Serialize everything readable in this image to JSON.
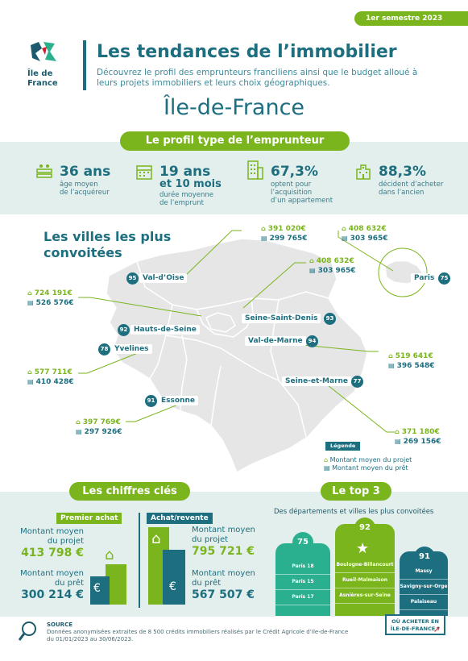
{
  "header": {
    "semester": "1er semestre 2023",
    "logo_text_1": "Île de",
    "logo_text_2": "France",
    "title": "Les tendances de l’immobilier",
    "subtitle": "Découvrez le profil des emprunteurs franciliens ainsi que le budget alloué à leurs projets immobiliers et leurs choix géographiques.",
    "region": "Île-de-France"
  },
  "profile": {
    "heading": "Le profil type de l’emprunteur",
    "stats": [
      {
        "icon": "people-icon",
        "big": "36 ans",
        "mid": "",
        "small1": "âge moyen",
        "small2": "de l’acquéreur",
        "small3": ""
      },
      {
        "icon": "calendar-icon",
        "big": "19 ans",
        "mid": "et 10 mois",
        "small1": "durée moyenne",
        "small2": "de l’emprunt",
        "small3": ""
      },
      {
        "icon": "apartment-icon",
        "big": "67,3%",
        "mid": "",
        "small1": "optent pour",
        "small2": "l’acquisition",
        "small3": "d’un appartement"
      },
      {
        "icon": "old-building-icon",
        "big": "88,3%",
        "mid": "",
        "small1": "décident d’acheter",
        "small2": "dans l’ancien",
        "small3": ""
      }
    ]
  },
  "map": {
    "title_line1": "Les villes les plus",
    "title_line2": "convoitées",
    "departments": [
      {
        "num": "95",
        "name": "Val-d’Oise"
      },
      {
        "num": "75",
        "name": "Paris"
      },
      {
        "num": "93",
        "name": "Seine-Saint-Denis"
      },
      {
        "num": "92",
        "name": "Hauts-de-Seine"
      },
      {
        "num": "94",
        "name": "Val-de-Marne"
      },
      {
        "num": "78",
        "name": "Yvelines"
      },
      {
        "num": "77",
        "name": "Seine-et-Marne"
      },
      {
        "num": "91",
        "name": "Essonne"
      }
    ],
    "prices": {
      "val_doise": {
        "project": "391 020€",
        "loan": "299 765€"
      },
      "paris": {
        "project": "408 632€",
        "loan": "303 965€"
      },
      "seine_saint_denis": {
        "project": "408 632€",
        "loan": "303 965€"
      },
      "hauts_de_seine": {
        "project": "724 191€",
        "loan": "526 576€"
      },
      "val_de_marne": {
        "project": "519 641€",
        "loan": "396 548€"
      },
      "yvelines": {
        "project": "577 711€",
        "loan": "410 428€"
      },
      "essonne": {
        "project": "397 769€",
        "loan": "297 926€"
      },
      "seine_et_marne": {
        "project": "371 180€",
        "loan": "269 156€"
      }
    },
    "legend": {
      "title": "Légende",
      "project": "Montant moyen du projet",
      "loan": "Montant moyen du prêt"
    }
  },
  "key_figures": {
    "heading": "Les chiffres clés",
    "first_purchase": {
      "label": "Premier achat",
      "project_label_1": "Montant moyen",
      "project_label_2": "du projet",
      "project_value": "413 798 €",
      "loan_label_1": "Montant moyen",
      "loan_label_2": "du prêt",
      "loan_value": "300 214 €"
    },
    "resale": {
      "label": "Achat/revente",
      "project_label_1": "Montant moyen",
      "project_label_2": "du projet",
      "project_value": "795 721 €",
      "loan_label_1": "Montant moyen",
      "loan_label_2": "du prêt",
      "loan_value": "567 507 €"
    }
  },
  "top3": {
    "heading": "Le top 3",
    "subtitle": "Des départements et  villes les plus convoitées",
    "podium": [
      {
        "num": "75",
        "cities": [
          "Paris 18",
          "Paris 15",
          "Paris 17"
        ],
        "color": "#2bb08f"
      },
      {
        "num": "92",
        "cities": [
          "Boulogne-Billancourt",
          "Rueil-Malmaison",
          "Asnières-sur-Seine"
        ],
        "color": "#7ab51d"
      },
      {
        "num": "91",
        "cities": [
          "Massy",
          "Savigny-sur-Orge",
          "Palaiseau"
        ],
        "color": "#1d6f80"
      }
    ]
  },
  "footer": {
    "source_title": "SOURCE",
    "source_text": "Données anonymisées extraites de 8 500 crédits immobiliers réalisés par le Crédit Agricole d’Ile-de-France du 01/01/2023 au 30/06/2023.",
    "cta_line1": "OÙ ACHETER EN",
    "cta_line2": "ÎLE-DE-FRANCE ?"
  },
  "colors": {
    "green": "#7ab51d",
    "teal": "#1d6f80",
    "mint": "#2bb08f",
    "band": "#e3efed",
    "map": "#e6e6e6"
  }
}
